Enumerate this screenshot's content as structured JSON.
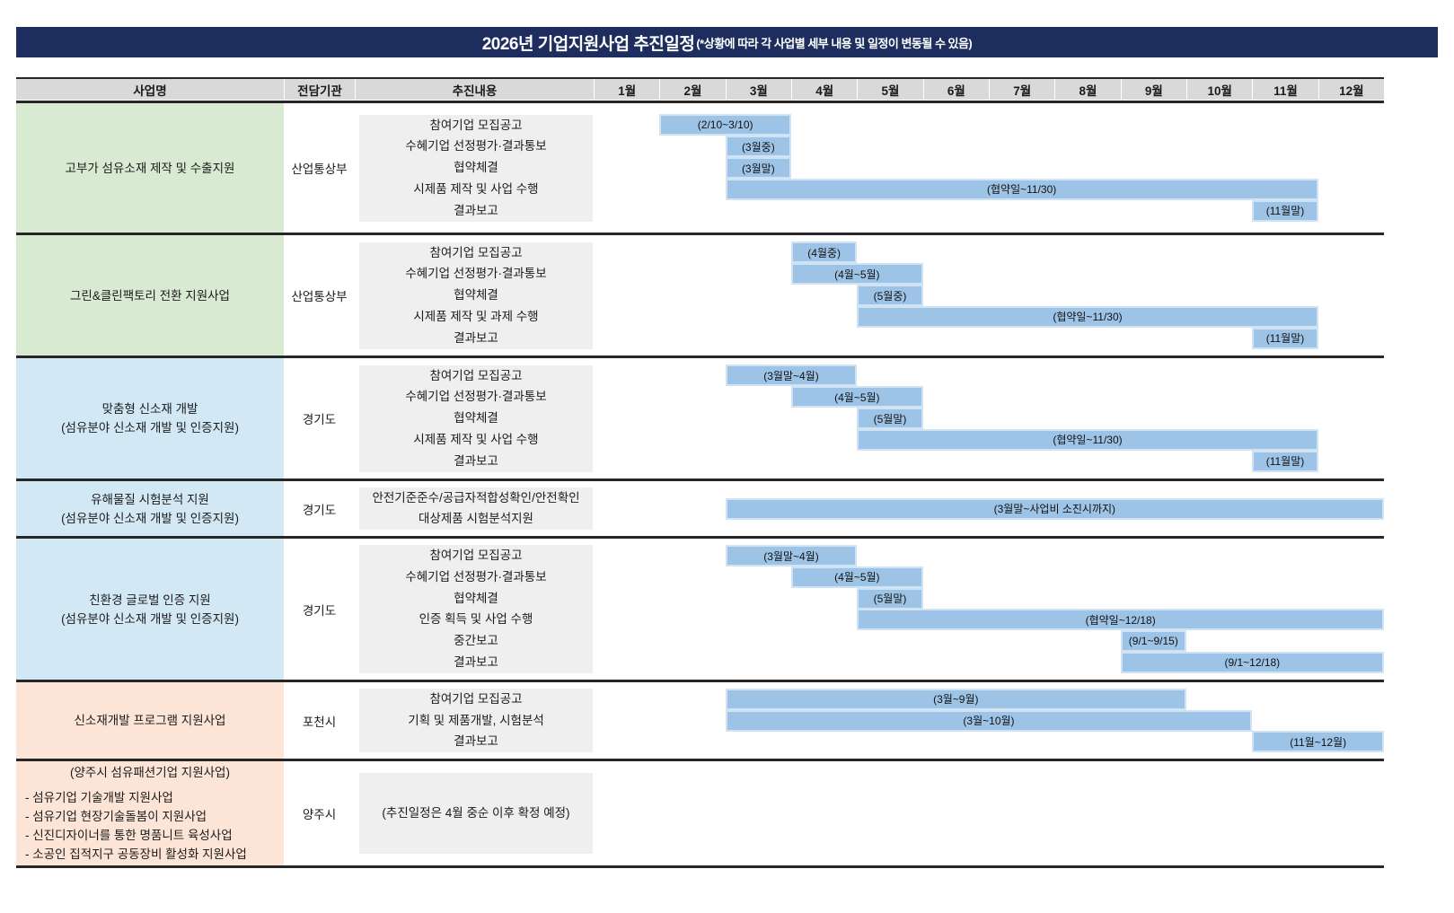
{
  "title": {
    "main": "2026년 기업지원사업 추진일정",
    "note": "(*상황에 따라 각 사업별 세부 내용 및 일정이 변동될 수 있음)"
  },
  "header": {
    "project": "사업명",
    "agency": "전담기관",
    "content": "추진내용"
  },
  "colors": {
    "title_bg": "#1c2d5e",
    "title_text": "#ffffff",
    "header_bg": "#d9d9d9",
    "row_green": "#d9ead3",
    "row_blue": "#d2e9f5",
    "row_peach": "#fce4d6",
    "content_bg": "#efefef",
    "bar_fill": "#9dc4e6",
    "bar_border": "#cfe3f4",
    "separator": "#262626"
  },
  "chart_data": {
    "type": "table",
    "subtype": "gantt-schedule",
    "months": [
      "1월",
      "2월",
      "3월",
      "4월",
      "5월",
      "6월",
      "7월",
      "8월",
      "9월",
      "10월",
      "11월",
      "12월"
    ],
    "rows": [
      {
        "name": [
          "고부가 섬유소재 제작 및 수출지원"
        ],
        "bg": "green",
        "agency": "산업통상부",
        "tasks": [
          {
            "lines": [
              "참여기업 모집공고"
            ],
            "bar": {
              "from": 2,
              "to": 3,
              "label": "(2/10~3/10)"
            }
          },
          {
            "lines": [
              "수혜기업 선정평가·결과통보"
            ],
            "bar": {
              "from": 3,
              "to": 3,
              "label": "(3월중)"
            }
          },
          {
            "lines": [
              "협약체결"
            ],
            "bar": {
              "from": 3,
              "to": 3,
              "label": "(3월말)"
            }
          },
          {
            "lines": [
              "시제품 제작 및 사업 수행"
            ],
            "bar": {
              "from": 3,
              "to": 11,
              "label": "(협약일~11/30)"
            }
          },
          {
            "lines": [
              "결과보고"
            ],
            "bar": {
              "from": 11,
              "to": 11,
              "label": "(11월말)"
            }
          }
        ]
      },
      {
        "name": [
          "그린&클린팩토리 전환 지원사업"
        ],
        "bg": "green",
        "agency": "산업통상부",
        "tasks": [
          {
            "lines": [
              "참여기업 모집공고"
            ],
            "bar": {
              "from": 4,
              "to": 4,
              "label": "(4월중)"
            }
          },
          {
            "lines": [
              "수혜기업 선정평가·결과통보"
            ],
            "bar": {
              "from": 4,
              "to": 5,
              "label": "(4월~5월)"
            }
          },
          {
            "lines": [
              "협약체결"
            ],
            "bar": {
              "from": 5,
              "to": 5,
              "label": "(5월중)"
            }
          },
          {
            "lines": [
              "시제품 제작 및 과제 수행"
            ],
            "bar": {
              "from": 5,
              "to": 11,
              "label": "(협약일~11/30)"
            }
          },
          {
            "lines": [
              "결과보고"
            ],
            "bar": {
              "from": 11,
              "to": 11,
              "label": "(11월말)"
            }
          }
        ]
      },
      {
        "name": [
          "맞춤형 신소재 개발",
          "(섬유분야 신소재 개발 및 인증지원)"
        ],
        "bg": "blue",
        "agency": "경기도",
        "tasks": [
          {
            "lines": [
              "참여기업 모집공고"
            ],
            "bar": {
              "from": 3,
              "to": 4,
              "label": "(3월말~4월)"
            }
          },
          {
            "lines": [
              "수혜기업 선정평가·결과통보"
            ],
            "bar": {
              "from": 4,
              "to": 5,
              "label": "(4월~5월)"
            }
          },
          {
            "lines": [
              "협약체결"
            ],
            "bar": {
              "from": 5,
              "to": 5,
              "label": "(5월말)"
            }
          },
          {
            "lines": [
              "시제품 제작 및 사업 수행"
            ],
            "bar": {
              "from": 5,
              "to": 11,
              "label": "(협약일~11/30)"
            }
          },
          {
            "lines": [
              "결과보고"
            ],
            "bar": {
              "from": 11,
              "to": 11,
              "label": "(11월말)"
            }
          }
        ]
      },
      {
        "name": [
          "유해물질 시험분석 지원",
          "(섬유분야 신소재 개발 및 인증지원)"
        ],
        "bg": "blue",
        "agency": "경기도",
        "tasks": [
          {
            "lines": [
              "안전기준준수/공급자적합성확인/안전확인",
              "대상제품 시험분석지원"
            ],
            "bar": {
              "from": 3,
              "to": 12,
              "label": "(3월말~사업비 소진시까지)"
            }
          }
        ]
      },
      {
        "name": [
          "친환경 글로벌 인증 지원",
          "(섬유분야 신소재 개발 및 인증지원)"
        ],
        "bg": "blue",
        "agency": "경기도",
        "tasks": [
          {
            "lines": [
              "참여기업 모집공고"
            ],
            "bar": {
              "from": 3,
              "to": 4,
              "label": "(3월말~4월)"
            }
          },
          {
            "lines": [
              "수혜기업 선정평가·결과통보"
            ],
            "bar": {
              "from": 4,
              "to": 5,
              "label": "(4월~5월)"
            }
          },
          {
            "lines": [
              "협약체결"
            ],
            "bar": {
              "from": 5,
              "to": 5,
              "label": "(5월말)"
            }
          },
          {
            "lines": [
              "인증 획득 및 사업 수행"
            ],
            "bar": {
              "from": 5,
              "to": 12,
              "label": "(협약일~12/18)"
            }
          },
          {
            "lines": [
              "중간보고"
            ],
            "bar": {
              "from": 9,
              "to": 9,
              "label": "(9/1~9/15)"
            }
          },
          {
            "lines": [
              "결과보고"
            ],
            "bar": {
              "from": 9,
              "to": 12,
              "label": "(9/1~12/18)"
            }
          }
        ]
      },
      {
        "name": [
          "신소재개발 프로그램 지원사업"
        ],
        "bg": "peach",
        "agency": "포천시",
        "tasks": [
          {
            "lines": [
              "참여기업 모집공고"
            ],
            "bar": {
              "from": 3,
              "to": 9,
              "label": "(3월~9월)"
            }
          },
          {
            "lines": [
              "기획 및 제품개발, 시험분석"
            ],
            "bar": {
              "from": 3,
              "to": 10,
              "label": "(3월~10월)"
            }
          },
          {
            "lines": [
              "결과보고"
            ],
            "bar": {
              "from": 11,
              "to": 12,
              "label": "(11월~12월)"
            }
          }
        ]
      },
      {
        "name": [
          "(양주시 섬유패션기업 지원사업)"
        ],
        "name_list": [
          "- 섬유기업 기술개발 지원사업",
          "- 섬유기업 현장기술돌봄이 지원사업",
          "- 신진디자이너를 통한 명품니트 육성사업",
          "- 소공인 집적지구 공동장비 활성화 지원사업"
        ],
        "bg": "peach",
        "agency": "양주시",
        "tasks": [
          {
            "lines": [
              "(추진일정은 4월 중순 이후 확정 예정)"
            ],
            "bar": null
          }
        ]
      }
    ]
  }
}
